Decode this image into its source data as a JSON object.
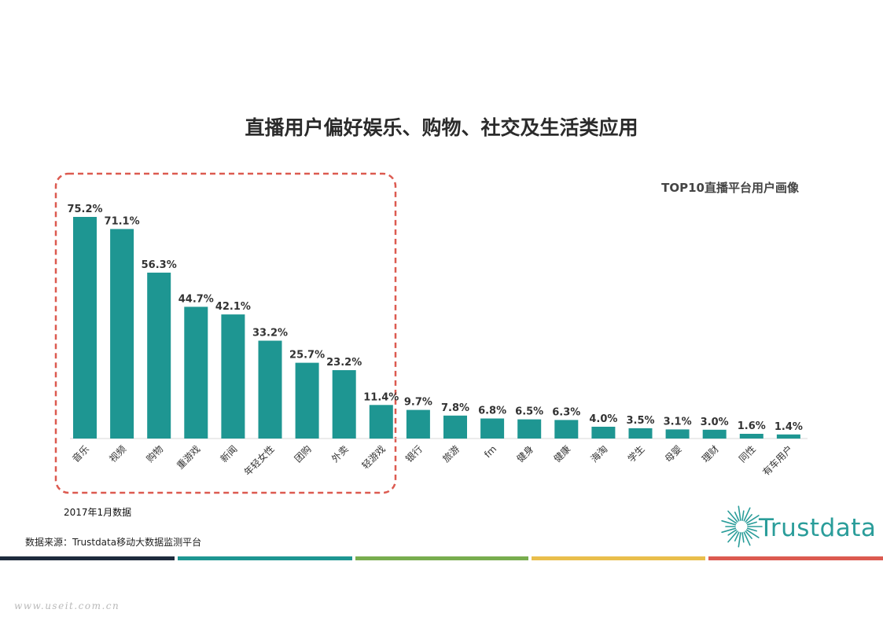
{
  "title": "直播用户偏好娱乐、购物、社交及生活类应用",
  "subtitle": "TOP10直播平台用户画像",
  "note": "2017年1月数据",
  "source": "数据来源：Trustdata移动大数据监测平台",
  "logo_text": "Trustdata",
  "watermark": "www.useit.com.cn",
  "colors": {
    "bar": "#1e9692",
    "highlight_box": "#dc5a50",
    "stripes": [
      "#1e2b3d",
      "#1e9692",
      "#78ad4e",
      "#e9be4c",
      "#dc5a50"
    ]
  },
  "chart_data": {
    "type": "bar",
    "title": "直播用户偏好娱乐、购物、社交及生活类应用",
    "subtitle": "TOP10直播平台用户画像",
    "categories": [
      "音乐",
      "视频",
      "购物",
      "重游戏",
      "新闻",
      "年轻女性",
      "团购",
      "外卖",
      "轻游戏",
      "银行",
      "旅游",
      "fm",
      "健身",
      "健康",
      "海淘",
      "学生",
      "母婴",
      "理财",
      "同性",
      "有车用户"
    ],
    "values": [
      75.2,
      71.1,
      56.3,
      44.7,
      42.1,
      33.2,
      25.7,
      23.2,
      11.4,
      9.7,
      7.8,
      6.8,
      6.5,
      6.3,
      4.0,
      3.5,
      3.1,
      3.0,
      1.6,
      1.4
    ],
    "labels": [
      "75.2%",
      "71.1%",
      "56.3%",
      "44.7%",
      "42.1%",
      "33.2%",
      "25.7%",
      "23.2%",
      "11.4%",
      "9.7%",
      "7.8%",
      "6.8%",
      "6.5%",
      "6.3%",
      "4.0%",
      "3.5%",
      "3.1%",
      "3.0%",
      "1.6%",
      "1.4%"
    ],
    "unit": "%",
    "ylim": [
      0,
      75.2
    ],
    "grid": false,
    "legend": "none",
    "highlighted_categories": [
      "音乐",
      "视频",
      "购物",
      "重游戏",
      "新闻",
      "年轻女性",
      "团购",
      "外卖",
      "轻游戏"
    ]
  }
}
